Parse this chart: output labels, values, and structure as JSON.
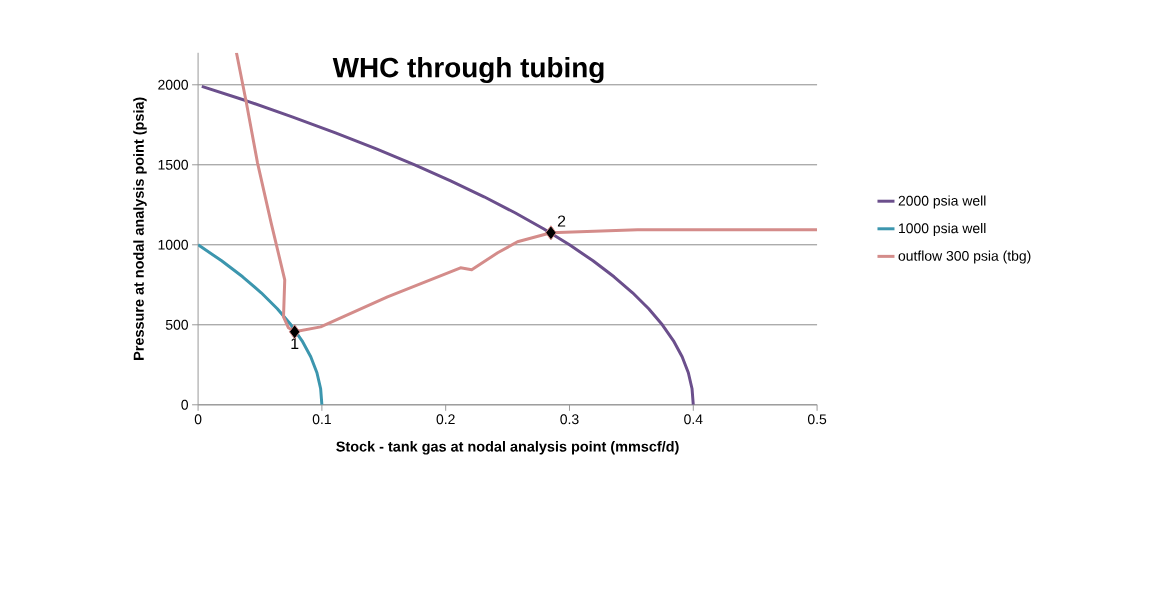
{
  "chart_data": {
    "type": "line",
    "title": "WHC through tubing",
    "xlabel": "Stock - tank gas at nodal analysis point (mmscf/d)",
    "ylabel": "Pressure at nodal analysis point (psia)",
    "xlim": [
      0,
      0.5
    ],
    "xticks": [
      0,
      0.1,
      0.2,
      0.3,
      0.4,
      0.5
    ],
    "ylim": [
      0,
      2200
    ],
    "yticks": [
      0,
      500,
      1000,
      1500,
      2000
    ],
    "grid": "y",
    "legend": "right",
    "series": [
      {
        "name": "2000 psia well",
        "color": "#6b4f8c",
        "x": [
          0.003,
          0.039,
          0.076,
          0.111,
          0.144,
          0.175,
          0.204,
          0.231,
          0.256,
          0.279,
          0.3,
          0.319,
          0.336,
          0.351,
          0.364,
          0.375,
          0.384,
          0.391,
          0.396,
          0.399,
          0.4
        ],
        "values": [
          1990,
          1900,
          1800,
          1700,
          1600,
          1500,
          1400,
          1300,
          1200,
          1100,
          1000,
          900,
          800,
          700,
          600,
          500,
          400,
          300,
          200,
          100,
          0
        ]
      },
      {
        "name": "1000 psia well",
        "color": "#3c96ae",
        "x": [
          0,
          0.019,
          0.036,
          0.051,
          0.064,
          0.075,
          0.084,
          0.091,
          0.096,
          0.099,
          0.1
        ],
        "values": [
          1000,
          900,
          800,
          700,
          600,
          500,
          400,
          300,
          200,
          100,
          0
        ]
      },
      {
        "name": "outflow 300 psia (tbg)",
        "color": "#d48c8a",
        "x": [
          0.031,
          0.039,
          0.048,
          0.059,
          0.07,
          0.069,
          0.073,
          0.078,
          0.099,
          0.153,
          0.212,
          0.221,
          0.242,
          0.258,
          0.285,
          0.355,
          0.5
        ],
        "values": [
          2200,
          1888,
          1512,
          1137,
          781,
          550,
          481,
          456,
          487,
          675,
          856,
          844,
          950,
          1019,
          1075,
          1094,
          1094
        ]
      },
      {
        "type": "scatter",
        "marker": "diamond",
        "color": "#000000",
        "x": [
          0.078,
          0.285
        ],
        "values": [
          456,
          1075
        ]
      }
    ],
    "annotations": [
      {
        "text": "1",
        "x": 0.078,
        "y": 456
      },
      {
        "text": "2",
        "x": 0.285,
        "y": 1075
      }
    ]
  }
}
